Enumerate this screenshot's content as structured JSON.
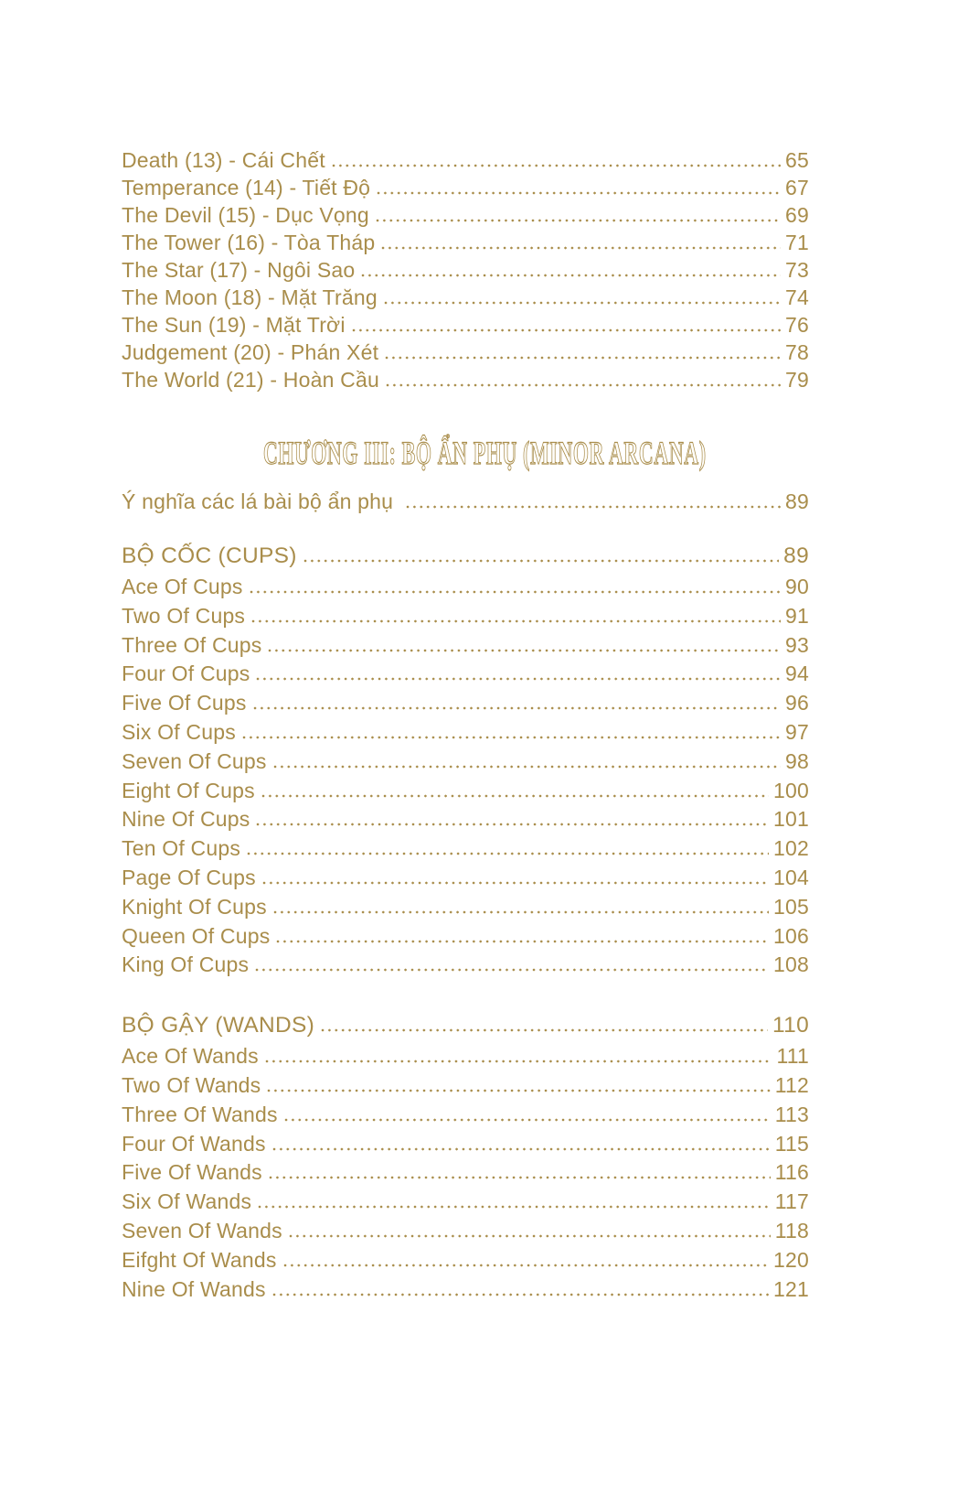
{
  "page": {
    "background": "#ffffff",
    "ink_color": "#a98d4b"
  },
  "toc": {
    "major_arcana_items": [
      {
        "label": "Death (13) - Cái Chết",
        "page": "65"
      },
      {
        "label": "Temperance (14) - Tiết Độ",
        "page": "67"
      },
      {
        "label": "The Devil (15) - Dục Vọng",
        "page": "69"
      },
      {
        "label": "The Tower (16) - Tòa Tháp",
        "page": "71"
      },
      {
        "label": "The Star (17) - Ngôi Sao",
        "page": "73"
      },
      {
        "label": "The Moon (18) - Mặt Trăng",
        "page": "74"
      },
      {
        "label": "The Sun (19) - Mặt Trời",
        "page": "76"
      },
      {
        "label": "Judgement (20) - Phán Xét",
        "page": "78"
      },
      {
        "label": "The World (21) - Hoàn Cầu",
        "page": "79"
      }
    ],
    "chapter_heading": "CHƯƠNG III: BỘ ẨN PHỤ (MINOR ARCANA)",
    "intro_item": {
      "label": "Ý nghĩa các lá bài bộ ẩn phụ",
      "page": "89"
    },
    "sections": [
      {
        "header": {
          "label": "BỘ CỐC (CUPS)",
          "page": "89"
        },
        "items": [
          {
            "label": "Ace Of Cups",
            "page": "90"
          },
          {
            "label": "Two Of Cups",
            "page": "91"
          },
          {
            "label": "Three Of Cups",
            "page": "93"
          },
          {
            "label": "Four Of Cups",
            "page": "94"
          },
          {
            "label": "Five Of Cups",
            "page": "96"
          },
          {
            "label": "Six Of Cups",
            "page": "97"
          },
          {
            "label": "Seven Of Cups",
            "page": "98"
          },
          {
            "label": "Eight Of Cups",
            "page": "100"
          },
          {
            "label": "Nine Of Cups",
            "page": "101"
          },
          {
            "label": "Ten Of Cups",
            "page": "102"
          },
          {
            "label": "Page Of Cups",
            "page": "104"
          },
          {
            "label": "Knight Of Cups",
            "page": "105"
          },
          {
            "label": "Queen Of Cups",
            "page": "106"
          },
          {
            "label": "King Of Cups",
            "page": "108"
          }
        ]
      },
      {
        "header": {
          "label": "BỘ GẬY (WANDS)",
          "page": "110"
        },
        "items": [
          {
            "label": "Ace Of Wands",
            "page": "111"
          },
          {
            "label": "Two Of Wands",
            "page": "112"
          },
          {
            "label": "Three Of Wands",
            "page": "113"
          },
          {
            "label": "Four Of Wands",
            "page": "115"
          },
          {
            "label": "Five Of Wands",
            "page": "116"
          },
          {
            "label": "Six Of Wands",
            "page": "117"
          },
          {
            "label": "Seven Of Wands",
            "page": "118"
          },
          {
            "label": "Eifght Of Wands",
            "page": "120"
          },
          {
            "label": "Nine Of Wands",
            "page": "121"
          }
        ]
      }
    ]
  }
}
